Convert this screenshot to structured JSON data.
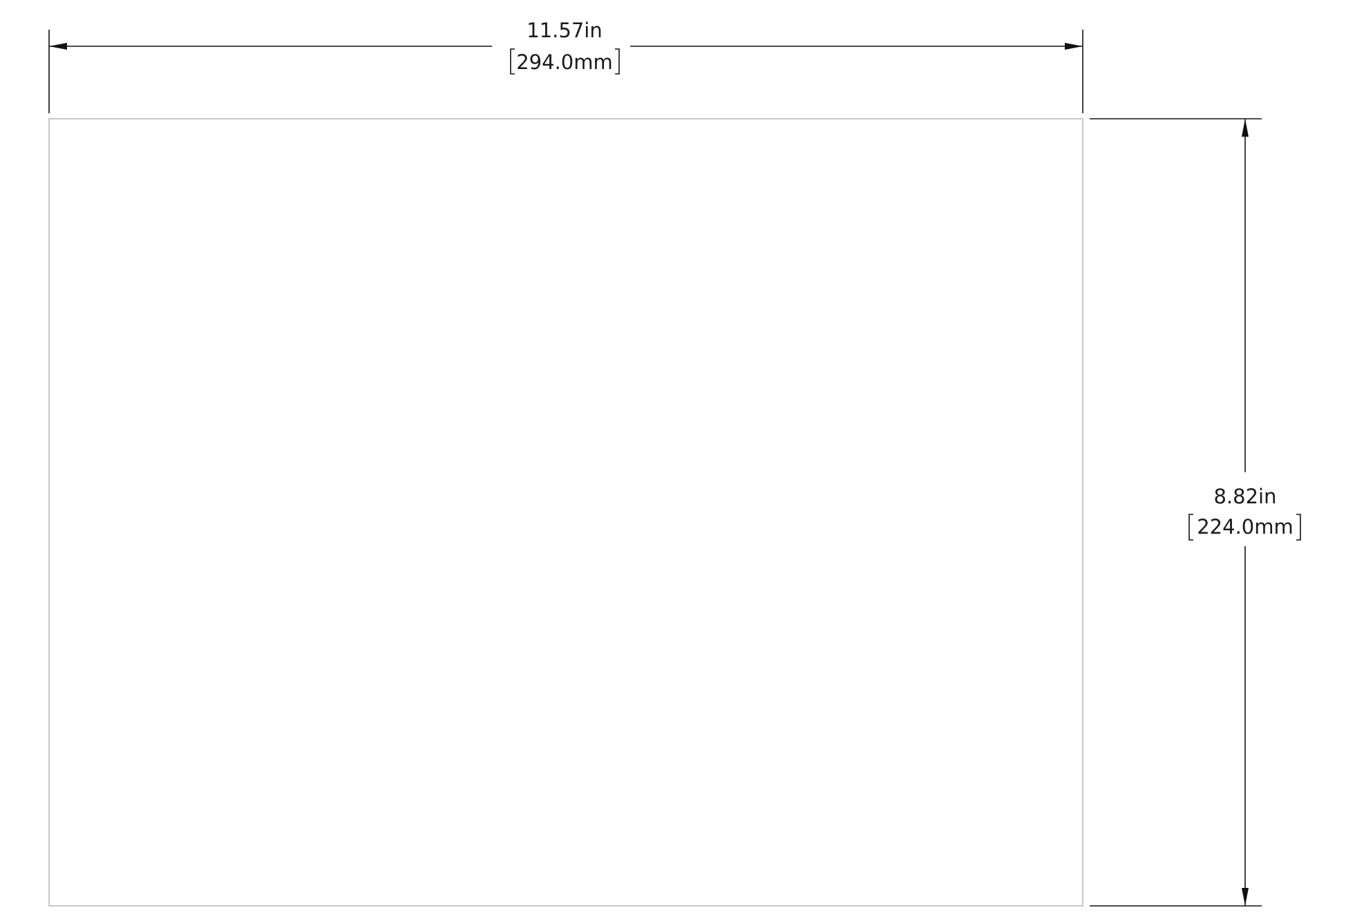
{
  "colors": {
    "outline": "#c8c8c8",
    "dimension_line": "#111111",
    "text": "#1a1a1a",
    "background": "#ffffff"
  },
  "dimensions": {
    "width": {
      "imperial": "11.57in",
      "metric": "294.0mm"
    },
    "height": {
      "imperial": "8.82in",
      "metric": "224.0mm"
    }
  }
}
